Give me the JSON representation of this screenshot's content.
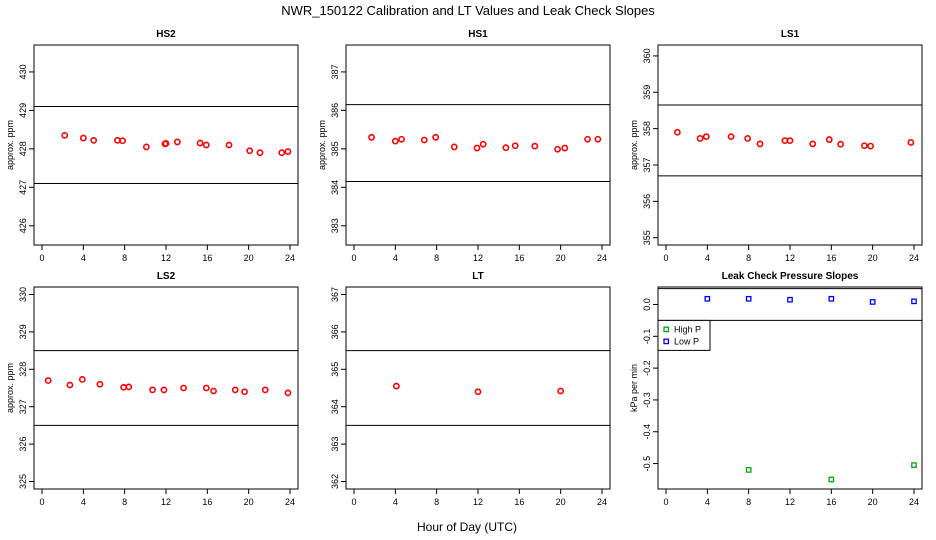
{
  "title": "NWR_150122  Calibration and LT Values and Leak Check Slopes",
  "xlabel": "Hour of Day (UTC)",
  "colors": {
    "point": "#ff0000",
    "high": "#00aa00",
    "low": "#0000ff",
    "line": "#000000"
  },
  "chart_data": [
    {
      "type": "scatter",
      "title": "HS2",
      "ylabel": "approx. ppm",
      "xlim": [
        0,
        24
      ],
      "ylim": [
        425.5,
        430.7
      ],
      "xticks": [
        0,
        4,
        8,
        12,
        16,
        20,
        24
      ],
      "yticks": [
        426,
        427,
        428,
        429,
        430
      ],
      "hlines": [
        429.1,
        427.1
      ],
      "x": [
        2.2,
        4.0,
        5.0,
        7.3,
        7.8,
        10.1,
        11.9,
        12.0,
        13.1,
        15.3,
        15.9,
        18.1,
        20.1,
        21.1,
        23.2,
        23.8
      ],
      "y": [
        428.35,
        428.28,
        428.22,
        428.22,
        428.21,
        428.05,
        428.13,
        428.14,
        428.18,
        428.15,
        428.1,
        428.1,
        427.95,
        427.9,
        427.9,
        427.93
      ]
    },
    {
      "type": "scatter",
      "title": "HS1",
      "ylabel": "approx. ppm",
      "xlim": [
        0,
        24
      ],
      "ylim": [
        382.5,
        387.7
      ],
      "xticks": [
        0,
        4,
        8,
        12,
        16,
        20,
        24
      ],
      "yticks": [
        383,
        384,
        385,
        386,
        387
      ],
      "hlines": [
        386.15,
        384.15
      ],
      "x": [
        1.7,
        4.0,
        4.6,
        6.8,
        7.9,
        9.7,
        11.9,
        12.5,
        14.7,
        15.6,
        17.5,
        19.7,
        20.4,
        22.6,
        23.6
      ],
      "y": [
        385.3,
        385.2,
        385.25,
        385.23,
        385.3,
        385.05,
        385.02,
        385.12,
        385.03,
        385.08,
        385.07,
        384.99,
        385.02,
        385.25,
        385.25
      ]
    },
    {
      "type": "scatter",
      "title": "LS1",
      "ylabel": "approx. ppm",
      "xlim": [
        0,
        24
      ],
      "ylim": [
        354.8,
        360.3
      ],
      "xticks": [
        0,
        4,
        8,
        12,
        16,
        20,
        24
      ],
      "yticks": [
        355,
        356,
        357,
        358,
        359,
        360
      ],
      "hlines": [
        358.65,
        356.7
      ],
      "x": [
        1.1,
        3.3,
        3.9,
        6.3,
        7.9,
        9.1,
        11.5,
        12.0,
        14.2,
        15.8,
        16.9,
        19.2,
        19.8,
        23.7
      ],
      "y": [
        357.9,
        357.73,
        357.78,
        357.78,
        357.73,
        357.58,
        357.67,
        357.67,
        357.58,
        357.7,
        357.57,
        357.53,
        357.52,
        357.62
      ]
    },
    {
      "type": "scatter",
      "title": "LS2",
      "ylabel": "approx. ppm",
      "xlim": [
        0,
        24
      ],
      "ylim": [
        324.8,
        330.2
      ],
      "xticks": [
        0,
        4,
        8,
        12,
        16,
        20,
        24
      ],
      "yticks": [
        325,
        326,
        327,
        328,
        329,
        330
      ],
      "hlines": [
        328.5,
        326.5
      ],
      "x": [
        0.6,
        2.7,
        3.9,
        5.6,
        7.9,
        8.4,
        10.7,
        11.8,
        13.7,
        15.9,
        16.6,
        18.7,
        19.6,
        21.6,
        23.8
      ],
      "y": [
        327.7,
        327.58,
        327.73,
        327.6,
        327.52,
        327.53,
        327.45,
        327.45,
        327.5,
        327.5,
        327.42,
        327.45,
        327.4,
        327.45,
        327.37
      ]
    },
    {
      "type": "scatter",
      "title": "LT",
      "ylabel": "",
      "xlim": [
        0,
        24
      ],
      "ylim": [
        361.8,
        367.2
      ],
      "xticks": [
        0,
        4,
        8,
        12,
        16,
        20,
        24
      ],
      "yticks": [
        362,
        363,
        364,
        365,
        366,
        367
      ],
      "hlines": [
        365.5,
        363.5
      ],
      "x": [
        4.1,
        12.0,
        20.0
      ],
      "y": [
        364.55,
        364.4,
        364.42
      ]
    },
    {
      "type": "scatter",
      "title": "Leak Check Pressure Slopes",
      "ylabel": "kPa per min",
      "xlim": [
        0,
        24
      ],
      "ylim": [
        -0.58,
        0.055
      ],
      "xticks": [
        0,
        4,
        8,
        12,
        16,
        20,
        24
      ],
      "yticks": [
        0.0,
        -0.1,
        -0.2,
        -0.3,
        -0.4,
        -0.5
      ],
      "ytick_labels": [
        "0.0",
        "-0.1",
        "-0.2",
        "-0.3",
        "-0.4",
        "-0.5"
      ],
      "hlines": [
        0.05,
        -0.05
      ],
      "legend": {
        "position": "top-left",
        "entries": [
          "High P",
          "Low P"
        ]
      },
      "series": [
        {
          "name": "High P",
          "x": [
            8.0,
            16.0,
            24.0
          ],
          "y": [
            -0.52,
            -0.55,
            -0.505
          ]
        },
        {
          "name": "Low P",
          "x": [
            4.0,
            8.0,
            12.0,
            16.0,
            20.0,
            24.0
          ],
          "y": [
            0.018,
            0.018,
            0.015,
            0.018,
            0.008,
            0.01
          ]
        }
      ]
    }
  ]
}
